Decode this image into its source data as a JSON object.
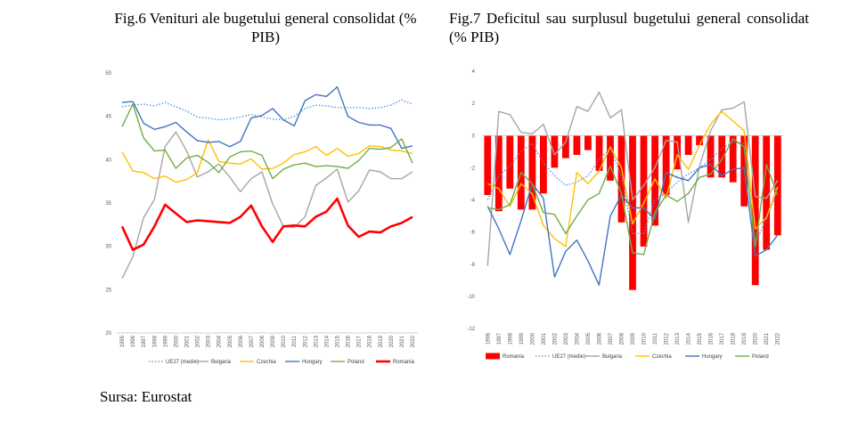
{
  "captions": {
    "fig6": "Fig.6 Venituri ale bugetului general consolidat (% PIB)",
    "fig7": "Fig.7 Deficitul sau surplusul bugetului general consolidat (% PIB)",
    "source": "Sursa: Eurostat"
  },
  "chart_data": [
    {
      "type": "line",
      "title": "",
      "x": [
        "1995",
        "1996",
        "1997",
        "1998",
        "1999",
        "2000",
        "2001",
        "2002",
        "2003",
        "2004",
        "2005",
        "2006",
        "2007",
        "2008",
        "2009",
        "2010",
        "2011",
        "2012",
        "2013",
        "2014",
        "2015",
        "2016",
        "2017",
        "2018",
        "2019",
        "2020",
        "2021",
        "2022"
      ],
      "ylim": [
        20,
        50
      ],
      "yticks": [
        20,
        25,
        30,
        35,
        40,
        45,
        50
      ],
      "grid": false,
      "legend_position": "bottom",
      "series": [
        {
          "name": "UE27 (medie)",
          "color": "#4a90d9",
          "style": "dotted",
          "values": [
            46.1,
            46.3,
            46.4,
            46.2,
            46.6,
            46.1,
            45.6,
            44.9,
            44.8,
            44.6,
            44.7,
            44.9,
            45.2,
            44.9,
            44.7,
            44.6,
            45.0,
            45.9,
            46.3,
            46.2,
            46.0,
            46.0,
            46.0,
            45.9,
            46.0,
            46.3,
            46.9,
            46.4
          ]
        },
        {
          "name": "Bulgaria",
          "color": "#a6a6a6",
          "style": "solid",
          "values": [
            26.3,
            28.8,
            33.3,
            35.4,
            41.5,
            43.2,
            41.0,
            38.0,
            38.6,
            39.5,
            38.0,
            36.3,
            37.8,
            38.6,
            34.9,
            32.3,
            32.2,
            33.4,
            37.0,
            37.9,
            38.9,
            35.1,
            36.4,
            38.8,
            38.6,
            37.8,
            37.8,
            38.6
          ]
        },
        {
          "name": "Czechia",
          "color": "#ffc000",
          "style": "solid",
          "values": [
            40.9,
            38.7,
            38.5,
            37.8,
            38.1,
            37.4,
            37.7,
            38.5,
            42.3,
            39.8,
            39.6,
            39.5,
            40.1,
            38.9,
            39.0,
            39.6,
            40.6,
            40.9,
            41.5,
            40.5,
            41.3,
            40.4,
            40.7,
            41.6,
            41.5,
            41.1,
            41.0,
            40.7
          ]
        },
        {
          "name": "Hungary",
          "color": "#4472c4",
          "style": "solid",
          "values": [
            46.6,
            46.7,
            44.2,
            43.5,
            43.8,
            44.3,
            43.2,
            42.2,
            42.0,
            42.1,
            41.5,
            42.1,
            44.8,
            45.1,
            45.9,
            44.6,
            43.9,
            46.8,
            47.5,
            47.3,
            48.4,
            45.0,
            44.3,
            44.0,
            44.0,
            43.6,
            41.3,
            41.6
          ]
        },
        {
          "name": "Poland",
          "color": "#70ad47",
          "style": "solid",
          "values": [
            43.8,
            46.4,
            42.5,
            41.0,
            41.1,
            39.0,
            40.2,
            40.5,
            39.7,
            38.5,
            40.3,
            40.9,
            41.0,
            40.5,
            37.8,
            38.9,
            39.4,
            39.6,
            39.2,
            39.3,
            39.2,
            39.0,
            39.9,
            41.3,
            41.2,
            41.4,
            42.4,
            39.6
          ]
        },
        {
          "name": "Romania",
          "color": "#ff0000",
          "style": "solid",
          "values": [
            32.3,
            29.6,
            30.2,
            32.3,
            34.8,
            33.8,
            32.8,
            33.0,
            32.9,
            32.8,
            32.7,
            33.4,
            34.7,
            32.3,
            30.5,
            32.3,
            32.4,
            32.3,
            33.4,
            34.0,
            35.5,
            32.4,
            31.1,
            31.7,
            31.6,
            32.3,
            32.7,
            33.4
          ]
        }
      ]
    },
    {
      "type": "bar+line",
      "title": "",
      "x": [
        "1996",
        "1997",
        "1998",
        "1999",
        "2000",
        "2001",
        "2002",
        "2003",
        "2004",
        "2005",
        "2006",
        "2007",
        "2008",
        "2009",
        "2010",
        "2011",
        "2012",
        "2013",
        "2014",
        "2015",
        "2016",
        "2017",
        "2018",
        "2019",
        "2020",
        "2021",
        "2022"
      ],
      "ylim": [
        -12,
        4
      ],
      "yticks": [
        4,
        2,
        0,
        -2,
        -4,
        -6,
        -8,
        -10,
        -12
      ],
      "grid": false,
      "legend_position": "bottom",
      "bar_series": {
        "name": "Romania",
        "color": "#ff0000",
        "values": [
          -3.7,
          -4.7,
          -3.3,
          -4.6,
          -4.6,
          -3.6,
          -2.0,
          -1.4,
          -1.2,
          -0.9,
          -2.2,
          -2.8,
          -5.4,
          -9.6,
          -6.9,
          -5.6,
          -3.7,
          -2.1,
          -1.2,
          -0.6,
          -2.6,
          -2.6,
          -2.9,
          -4.4,
          -9.3,
          -7.1,
          -6.2
        ]
      },
      "series": [
        {
          "name": "UE27 (medie)",
          "color": "#4a90d9",
          "style": "dotted",
          "values": [
            -4.0,
            -2.5,
            -1.9,
            -1.0,
            -0.5,
            -1.7,
            -2.5,
            -3.1,
            -2.9,
            -2.5,
            -1.5,
            -0.8,
            -2.5,
            -6.1,
            -6.1,
            -4.0,
            -3.6,
            -2.9,
            -2.4,
            -2.0,
            -1.5,
            -0.8,
            -0.4,
            -0.5,
            -6.7,
            -5.2,
            -3.4
          ]
        },
        {
          "name": "Bulgaria",
          "color": "#a6a6a6",
          "style": "solid",
          "values": [
            -8.1,
            1.5,
            1.3,
            0.2,
            0.1,
            0.7,
            -1.2,
            -0.4,
            1.8,
            1.5,
            2.7,
            1.1,
            1.6,
            -4.0,
            -3.1,
            -2.0,
            -0.3,
            -0.4,
            -5.4,
            -1.9,
            0.3,
            1.6,
            1.7,
            2.1,
            -3.8,
            -3.9,
            -2.8
          ]
        },
        {
          "name": "Czechia",
          "color": "#ffc000",
          "style": "solid",
          "values": [
            -3.0,
            -3.3,
            -4.4,
            -3.0,
            -3.6,
            -5.6,
            -6.4,
            -6.9,
            -2.3,
            -3.0,
            -2.2,
            -0.7,
            -2.0,
            -5.5,
            -4.2,
            -2.7,
            -3.9,
            -1.2,
            -2.1,
            -0.6,
            0.7,
            1.5,
            0.9,
            0.3,
            -5.8,
            -5.1,
            -3.2
          ]
        },
        {
          "name": "Hungary",
          "color": "#4472c4",
          "style": "solid",
          "values": [
            -4.4,
            -5.8,
            -7.4,
            -5.3,
            -3.0,
            -3.9,
            -8.8,
            -7.2,
            -6.5,
            -7.8,
            -9.3,
            -5.0,
            -3.7,
            -4.5,
            -4.5,
            -5.2,
            -2.3,
            -2.6,
            -2.8,
            -2.0,
            -1.8,
            -2.5,
            -2.1,
            -2.0,
            -7.5,
            -7.1,
            -6.2
          ]
        },
        {
          "name": "Poland",
          "color": "#70ad47",
          "style": "solid",
          "values": [
            -4.5,
            -4.6,
            -4.3,
            -2.3,
            -3.0,
            -4.8,
            -4.9,
            -6.1,
            -5.0,
            -4.0,
            -3.6,
            -1.9,
            -3.6,
            -7.3,
            -7.4,
            -4.8,
            -3.7,
            -4.1,
            -3.6,
            -2.6,
            -2.4,
            -1.5,
            -0.2,
            -0.7,
            -6.9,
            -1.8,
            -3.7
          ]
        }
      ]
    }
  ]
}
